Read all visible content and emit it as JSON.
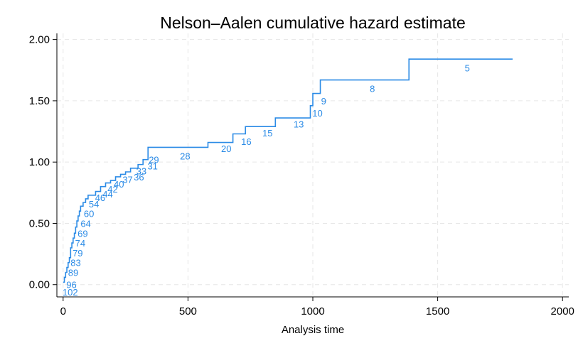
{
  "chart_data": {
    "type": "line",
    "title": "Nelson–Aalen cumulative hazard estimate",
    "xlabel": "Analysis time",
    "ylabel": "",
    "xlim": [
      -25,
      2025
    ],
    "ylim": [
      -0.1,
      2.05
    ],
    "x_ticks": [
      0,
      500,
      1000,
      1500,
      2000
    ],
    "y_ticks": [
      0,
      0.5,
      1.0,
      1.5,
      2.0
    ],
    "x_tick_labels": [
      "0",
      "500",
      "1000",
      "1500",
      "2000"
    ],
    "y_tick_labels": [
      "0.00",
      "0.50",
      "1.00",
      "1.50",
      "2.00"
    ],
    "grid": true,
    "line_color": "#2b8be6",
    "series": [
      {
        "step_x": [
          0,
          5,
          10,
          15,
          20,
          25,
          30,
          35,
          40,
          45,
          50,
          55,
          60,
          65,
          70,
          80,
          90,
          100,
          110,
          130,
          150,
          170,
          190,
          210,
          230,
          250,
          270,
          300,
          320,
          340,
          580,
          680,
          730,
          850,
          990,
          1000,
          1030,
          1385,
          1800
        ],
        "step_y": [
          0.02,
          0.06,
          0.1,
          0.14,
          0.18,
          0.22,
          0.3,
          0.34,
          0.38,
          0.42,
          0.47,
          0.52,
          0.56,
          0.6,
          0.64,
          0.67,
          0.7,
          0.73,
          0.73,
          0.76,
          0.8,
          0.83,
          0.85,
          0.88,
          0.9,
          0.92,
          0.95,
          0.98,
          1.02,
          1.12,
          1.16,
          1.23,
          1.29,
          1.36,
          1.46,
          1.56,
          1.67,
          1.84,
          1.84
        ]
      }
    ],
    "at_risk_labels": [
      {
        "x": 0,
        "y": -0.06,
        "text": "102"
      },
      {
        "x": 5,
        "y": 0.0,
        "text": "96"
      },
      {
        "x": 12,
        "y": 0.1,
        "text": "89"
      },
      {
        "x": 22,
        "y": 0.18,
        "text": "83"
      },
      {
        "x": 30,
        "y": 0.26,
        "text": "79"
      },
      {
        "x": 40,
        "y": 0.34,
        "text": "74"
      },
      {
        "x": 50,
        "y": 0.42,
        "text": "69"
      },
      {
        "x": 62,
        "y": 0.5,
        "text": "64"
      },
      {
        "x": 75,
        "y": 0.58,
        "text": "60"
      },
      {
        "x": 95,
        "y": 0.66,
        "text": "54"
      },
      {
        "x": 120,
        "y": 0.71,
        "text": "46"
      },
      {
        "x": 150,
        "y": 0.74,
        "text": "44"
      },
      {
        "x": 170,
        "y": 0.78,
        "text": "42"
      },
      {
        "x": 195,
        "y": 0.82,
        "text": "40"
      },
      {
        "x": 230,
        "y": 0.86,
        "text": "37"
      },
      {
        "x": 275,
        "y": 0.88,
        "text": "36"
      },
      {
        "x": 285,
        "y": 0.93,
        "text": "33"
      },
      {
        "x": 330,
        "y": 0.97,
        "text": "31"
      },
      {
        "x": 335,
        "y": 1.02,
        "text": "29"
      },
      {
        "x": 460,
        "y": 1.05,
        "text": "28"
      },
      {
        "x": 625,
        "y": 1.11,
        "text": "20"
      },
      {
        "x": 705,
        "y": 1.17,
        "text": "16"
      },
      {
        "x": 790,
        "y": 1.24,
        "text": "15"
      },
      {
        "x": 915,
        "y": 1.31,
        "text": "13"
      },
      {
        "x": 990,
        "y": 1.4,
        "text": "10"
      },
      {
        "x": 1015,
        "y": 1.5,
        "text": "9"
      },
      {
        "x": 1210,
        "y": 1.6,
        "text": "8"
      },
      {
        "x": 1590,
        "y": 1.77,
        "text": "5"
      }
    ]
  }
}
